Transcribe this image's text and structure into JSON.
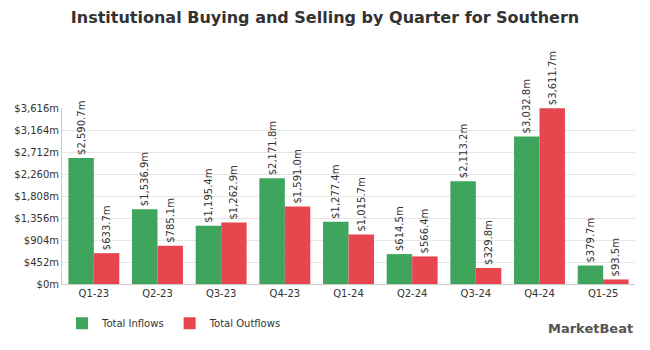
{
  "chart_data": {
    "type": "bar",
    "title": "Institutional Buying and Selling by Quarter for Southern",
    "categories": [
      "Q1-23",
      "Q2-23",
      "Q3-23",
      "Q4-23",
      "Q1-24",
      "Q2-24",
      "Q3-24",
      "Q4-24",
      "Q1-25"
    ],
    "series": [
      {
        "name": "Total Inflows",
        "color": "#3fa55c",
        "values": [
          2590.7,
          1536.9,
          1195.4,
          2171.8,
          1277.4,
          614.5,
          2113.2,
          3032.8,
          379.7
        ],
        "value_labels": [
          "$2,590.7m",
          "$1,536.9m",
          "$1,195.4m",
          "$2,171.8m",
          "$1,277.4m",
          "$614.5m",
          "$2,113.2m",
          "$3,032.8m",
          "$379.7m"
        ]
      },
      {
        "name": "Total Outflows",
        "color": "#e8464e",
        "values": [
          633.7,
          785.1,
          1262.9,
          1591.0,
          1015.7,
          566.4,
          329.8,
          3611.7,
          93.5
        ],
        "value_labels": [
          "$633.7m",
          "$785.1m",
          "$1,262.9m",
          "$1,591.0m",
          "$1,015.7m",
          "$566.4m",
          "$329.8m",
          "$3,611.7m",
          "$93.5m"
        ]
      }
    ],
    "ylim": [
      0,
      3616
    ],
    "yticks": [
      {
        "value": 0,
        "label": "$0m"
      },
      {
        "value": 452,
        "label": "$452m"
      },
      {
        "value": 904,
        "label": "$904m"
      },
      {
        "value": 1356,
        "label": "$1,356m"
      },
      {
        "value": 1808,
        "label": "$1,808m"
      },
      {
        "value": 2260,
        "label": "$2,260m"
      },
      {
        "value": 2712,
        "label": "$2,712m"
      },
      {
        "value": 3164,
        "label": "$3,164m"
      },
      {
        "value": 3616,
        "label": "$3,616m"
      }
    ],
    "grid": true,
    "legend": "bottom-left",
    "data_labels": true,
    "annotations": [
      {
        "text": "MarketBeat"
      }
    ]
  }
}
